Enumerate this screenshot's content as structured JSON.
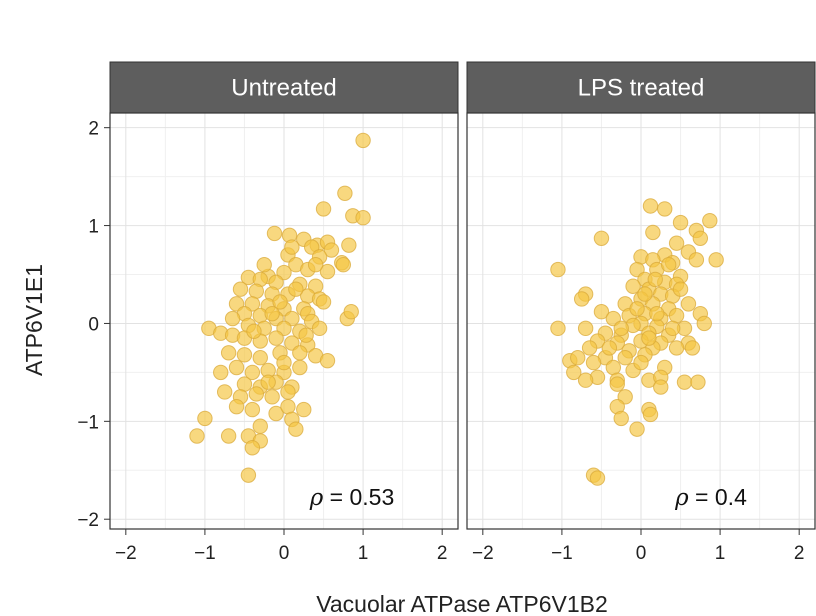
{
  "chart_data": {
    "type": "scatter",
    "xlabel": "Vacuolar ATPase ATP6V1B2",
    "ylabel": "ATP6V1E1",
    "xlim": [
      -2.2,
      2.2
    ],
    "ylim": [
      -2.1,
      2.15
    ],
    "xticks": [
      "−2",
      "−1",
      "0",
      "1",
      "2"
    ],
    "yticks": [
      "−2",
      "−1",
      "0",
      "1",
      "2"
    ],
    "grid": true,
    "point_color": "#f5c542",
    "point_stroke": "#d9a93a",
    "strip_color": "#5e5e5e",
    "panels": [
      {
        "name": "Untreated",
        "annotation": {
          "symbol": "ρ",
          "text": " = 0.53"
        },
        "points": [
          {
            "x": 1.0,
            "y": 1.87
          },
          {
            "x": 0.77,
            "y": 1.33
          },
          {
            "x": 0.87,
            "y": 1.1
          },
          {
            "x": 1.0,
            "y": 1.08
          },
          {
            "x": 0.5,
            "y": 1.17
          },
          {
            "x": -0.12,
            "y": 0.92
          },
          {
            "x": 0.07,
            "y": 0.9
          },
          {
            "x": 0.25,
            "y": 0.86
          },
          {
            "x": 0.42,
            "y": 0.8
          },
          {
            "x": 0.55,
            "y": 0.83
          },
          {
            "x": 0.82,
            "y": 0.8
          },
          {
            "x": 0.35,
            "y": 0.78
          },
          {
            "x": 0.6,
            "y": 0.75
          },
          {
            "x": 0.05,
            "y": 0.7
          },
          {
            "x": 0.45,
            "y": 0.68
          },
          {
            "x": 0.73,
            "y": 0.62
          },
          {
            "x": 0.75,
            "y": 0.6
          },
          {
            "x": 0.15,
            "y": 0.6
          },
          {
            "x": 0.3,
            "y": 0.55
          },
          {
            "x": 0.55,
            "y": 0.53
          },
          {
            "x": 0.0,
            "y": 0.52
          },
          {
            "x": -0.2,
            "y": 0.48
          },
          {
            "x": -0.45,
            "y": 0.47
          },
          {
            "x": -0.3,
            "y": 0.45
          },
          {
            "x": -0.1,
            "y": 0.42
          },
          {
            "x": 0.2,
            "y": 0.4
          },
          {
            "x": 0.4,
            "y": 0.38
          },
          {
            "x": -0.55,
            "y": 0.35
          },
          {
            "x": -0.35,
            "y": 0.33
          },
          {
            "x": -0.15,
            "y": 0.3
          },
          {
            "x": 0.05,
            "y": 0.3
          },
          {
            "x": 0.3,
            "y": 0.28
          },
          {
            "x": 0.45,
            "y": 0.25
          },
          {
            "x": -0.6,
            "y": 0.2
          },
          {
            "x": -0.4,
            "y": 0.2
          },
          {
            "x": -0.2,
            "y": 0.18
          },
          {
            "x": 0.0,
            "y": 0.15
          },
          {
            "x": 0.25,
            "y": 0.15
          },
          {
            "x": 0.5,
            "y": 0.22
          },
          {
            "x": 0.3,
            "y": 0.1
          },
          {
            "x": -0.5,
            "y": 0.1
          },
          {
            "x": -0.3,
            "y": 0.08
          },
          {
            "x": -0.1,
            "y": 0.05
          },
          {
            "x": 0.1,
            "y": 0.05
          },
          {
            "x": 0.35,
            "y": 0.02
          },
          {
            "x": -0.45,
            "y": -0.02
          },
          {
            "x": -0.25,
            "y": -0.05
          },
          {
            "x": 0.0,
            "y": -0.05
          },
          {
            "x": 0.2,
            "y": -0.08
          },
          {
            "x": 0.45,
            "y": -0.05
          },
          {
            "x": 0.8,
            "y": 0.05
          },
          {
            "x": 0.85,
            "y": 0.12
          },
          {
            "x": -0.95,
            "y": -0.05
          },
          {
            "x": -0.8,
            "y": -0.1
          },
          {
            "x": -0.65,
            "y": -0.12
          },
          {
            "x": -0.5,
            "y": -0.15
          },
          {
            "x": -0.3,
            "y": -0.18
          },
          {
            "x": -0.1,
            "y": -0.15
          },
          {
            "x": 0.1,
            "y": -0.2
          },
          {
            "x": 0.3,
            "y": -0.22
          },
          {
            "x": -0.7,
            "y": -0.3
          },
          {
            "x": -0.5,
            "y": -0.32
          },
          {
            "x": -0.3,
            "y": -0.35
          },
          {
            "x": -0.05,
            "y": -0.3
          },
          {
            "x": 0.2,
            "y": -0.3
          },
          {
            "x": 0.4,
            "y": -0.33
          },
          {
            "x": 0.55,
            "y": -0.38
          },
          {
            "x": -0.8,
            "y": -0.5
          },
          {
            "x": -0.6,
            "y": -0.45
          },
          {
            "x": -0.4,
            "y": -0.5
          },
          {
            "x": -0.2,
            "y": -0.48
          },
          {
            "x": 0.0,
            "y": -0.5
          },
          {
            "x": 0.2,
            "y": -0.45
          },
          {
            "x": -0.5,
            "y": -0.62
          },
          {
            "x": -0.3,
            "y": -0.65
          },
          {
            "x": -0.1,
            "y": -0.6
          },
          {
            "x": 0.1,
            "y": -0.65
          },
          {
            "x": -0.75,
            "y": -0.7
          },
          {
            "x": -0.55,
            "y": -0.75
          },
          {
            "x": -0.35,
            "y": -0.72
          },
          {
            "x": -0.15,
            "y": -0.75
          },
          {
            "x": 0.05,
            "y": -0.7
          },
          {
            "x": -0.6,
            "y": -0.85
          },
          {
            "x": -0.4,
            "y": -0.88
          },
          {
            "x": -0.1,
            "y": -0.92
          },
          {
            "x": 0.05,
            "y": -0.85
          },
          {
            "x": 0.25,
            "y": -0.88
          },
          {
            "x": 0.1,
            "y": -0.98
          },
          {
            "x": -1.0,
            "y": -0.97
          },
          {
            "x": -0.3,
            "y": -1.05
          },
          {
            "x": 0.15,
            "y": -1.08
          },
          {
            "x": -0.45,
            "y": -1.15
          },
          {
            "x": -0.3,
            "y": -1.2
          },
          {
            "x": -0.7,
            "y": -1.15
          },
          {
            "x": -1.1,
            "y": -1.15
          },
          {
            "x": -0.4,
            "y": -1.27
          },
          {
            "x": -0.45,
            "y": -1.55
          },
          {
            "x": -0.25,
            "y": 0.6
          },
          {
            "x": 0.1,
            "y": 0.78
          },
          {
            "x": -0.05,
            "y": 0.22
          },
          {
            "x": 0.15,
            "y": 0.35
          },
          {
            "x": -0.38,
            "y": -0.08
          },
          {
            "x": 0.28,
            "y": -0.12
          },
          {
            "x": -0.2,
            "y": -0.6
          },
          {
            "x": 0.0,
            "y": -0.4
          },
          {
            "x": -0.65,
            "y": 0.05
          },
          {
            "x": 0.4,
            "y": 0.6
          },
          {
            "x": -0.15,
            "y": 0.1
          }
        ]
      },
      {
        "name": "LPS treated",
        "annotation": {
          "symbol": "ρ",
          "text": " = 0.4"
        },
        "points": [
          {
            "x": 0.12,
            "y": 1.2
          },
          {
            "x": 0.3,
            "y": 1.17
          },
          {
            "x": 0.5,
            "y": 1.03
          },
          {
            "x": 0.87,
            "y": 1.05
          },
          {
            "x": 0.15,
            "y": 0.93
          },
          {
            "x": 0.7,
            "y": 0.95
          },
          {
            "x": -0.5,
            "y": 0.87
          },
          {
            "x": 0.75,
            "y": 0.87
          },
          {
            "x": 0.45,
            "y": 0.82
          },
          {
            "x": 0.6,
            "y": 0.73
          },
          {
            "x": 0.3,
            "y": 0.7
          },
          {
            "x": 0.0,
            "y": 0.68
          },
          {
            "x": 0.15,
            "y": 0.65
          },
          {
            "x": 0.95,
            "y": 0.65
          },
          {
            "x": 0.4,
            "y": 0.62
          },
          {
            "x": 0.7,
            "y": 0.65
          },
          {
            "x": -0.05,
            "y": 0.55
          },
          {
            "x": 0.2,
            "y": 0.55
          },
          {
            "x": -1.05,
            "y": 0.55
          },
          {
            "x": 0.5,
            "y": 0.48
          },
          {
            "x": 0.05,
            "y": 0.45
          },
          {
            "x": 0.3,
            "y": 0.42
          },
          {
            "x": 0.45,
            "y": 0.4
          },
          {
            "x": -0.1,
            "y": 0.38
          },
          {
            "x": 0.1,
            "y": 0.35
          },
          {
            "x": 0.25,
            "y": 0.3
          },
          {
            "x": -0.7,
            "y": 0.3
          },
          {
            "x": -0.75,
            "y": 0.25
          },
          {
            "x": 0.4,
            "y": 0.28
          },
          {
            "x": 0.0,
            "y": 0.25
          },
          {
            "x": -0.2,
            "y": 0.2
          },
          {
            "x": 0.15,
            "y": 0.2
          },
          {
            "x": 0.6,
            "y": 0.2
          },
          {
            "x": 0.35,
            "y": 0.15
          },
          {
            "x": -0.5,
            "y": 0.12
          },
          {
            "x": 0.05,
            "y": 0.1
          },
          {
            "x": -0.15,
            "y": 0.08
          },
          {
            "x": 0.25,
            "y": 0.05
          },
          {
            "x": 0.45,
            "y": 0.08
          },
          {
            "x": 0.75,
            "y": 0.1
          },
          {
            "x": -0.35,
            "y": 0.05
          },
          {
            "x": 0.0,
            "y": 0.0
          },
          {
            "x": -0.1,
            "y": -0.02
          },
          {
            "x": 0.2,
            "y": -0.03
          },
          {
            "x": 0.55,
            "y": -0.05
          },
          {
            "x": 0.8,
            "y": 0.0
          },
          {
            "x": -0.7,
            "y": -0.05
          },
          {
            "x": -1.05,
            "y": -0.05
          },
          {
            "x": -0.45,
            "y": -0.1
          },
          {
            "x": -0.25,
            "y": -0.12
          },
          {
            "x": 0.1,
            "y": -0.1
          },
          {
            "x": 0.35,
            "y": -0.12
          },
          {
            "x": -0.55,
            "y": -0.18
          },
          {
            "x": -0.3,
            "y": -0.2
          },
          {
            "x": 0.0,
            "y": -0.18
          },
          {
            "x": 0.25,
            "y": -0.2
          },
          {
            "x": 0.6,
            "y": -0.2
          },
          {
            "x": -0.65,
            "y": -0.25
          },
          {
            "x": -0.15,
            "y": -0.28
          },
          {
            "x": 0.15,
            "y": -0.25
          },
          {
            "x": 0.45,
            "y": -0.25
          },
          {
            "x": 0.65,
            "y": -0.25
          },
          {
            "x": -0.45,
            "y": -0.35
          },
          {
            "x": -0.2,
            "y": -0.35
          },
          {
            "x": 0.05,
            "y": -0.32
          },
          {
            "x": -0.9,
            "y": -0.38
          },
          {
            "x": -0.8,
            "y": -0.35
          },
          {
            "x": -0.6,
            "y": -0.4
          },
          {
            "x": -0.35,
            "y": -0.45
          },
          {
            "x": -0.1,
            "y": -0.48
          },
          {
            "x": 0.3,
            "y": -0.45
          },
          {
            "x": -0.85,
            "y": -0.5
          },
          {
            "x": -0.55,
            "y": -0.55
          },
          {
            "x": -0.3,
            "y": -0.58
          },
          {
            "x": 0.1,
            "y": -0.58
          },
          {
            "x": 0.25,
            "y": -0.55
          },
          {
            "x": -0.7,
            "y": -0.58
          },
          {
            "x": 0.55,
            "y": -0.6
          },
          {
            "x": 0.72,
            "y": -0.6
          },
          {
            "x": -0.3,
            "y": -0.62
          },
          {
            "x": 0.25,
            "y": -0.65
          },
          {
            "x": -0.2,
            "y": -0.75
          },
          {
            "x": -0.3,
            "y": -0.85
          },
          {
            "x": 0.1,
            "y": -0.88
          },
          {
            "x": 0.12,
            "y": -0.93
          },
          {
            "x": -0.25,
            "y": -0.97
          },
          {
            "x": -0.05,
            "y": -1.08
          },
          {
            "x": -0.6,
            "y": -1.55
          },
          {
            "x": -0.55,
            "y": -1.58
          },
          {
            "x": 0.05,
            "y": 0.3
          },
          {
            "x": 0.35,
            "y": 0.6
          },
          {
            "x": -0.05,
            "y": 0.15
          },
          {
            "x": 0.2,
            "y": 0.1
          },
          {
            "x": -0.25,
            "y": -0.05
          },
          {
            "x": 0.4,
            "y": -0.05
          },
          {
            "x": 0.0,
            "y": -0.4
          },
          {
            "x": 0.18,
            "y": 0.45
          },
          {
            "x": -0.4,
            "y": -0.25
          },
          {
            "x": 0.5,
            "y": 0.35
          },
          {
            "x": 0.1,
            "y": -0.15
          }
        ]
      }
    ]
  }
}
